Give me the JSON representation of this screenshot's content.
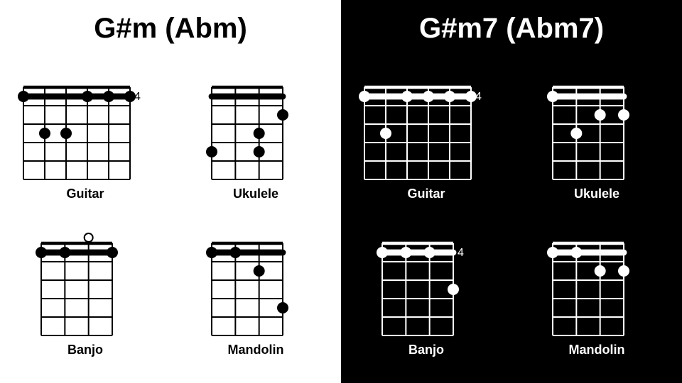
{
  "panels": [
    {
      "side": "left",
      "title": "G#m (Abm)",
      "bg": "#ffffff",
      "fg": "#000000",
      "diagrams": [
        {
          "label": "Guitar",
          "strings": 6,
          "frets": 5,
          "width": 150,
          "height": 130,
          "line_width": 2,
          "dot_radius": 8,
          "fret_label": "4",
          "fret_label_side": "right",
          "barre": {
            "fromString": 1,
            "toString": 6,
            "fret": 1
          },
          "open": [],
          "muted": [],
          "dots": [
            {
              "string": 1,
              "fret": 1
            },
            {
              "string": 4,
              "fret": 1
            },
            {
              "string": 5,
              "fret": 1
            },
            {
              "string": 6,
              "fret": 1
            },
            {
              "string": 2,
              "fret": 3
            },
            {
              "string": 3,
              "fret": 3
            }
          ]
        },
        {
          "label": "Ukulele",
          "strings": 4,
          "frets": 5,
          "width": 100,
          "height": 130,
          "line_width": 2,
          "dot_radius": 8,
          "fret_label": null,
          "barre": {
            "fromString": 1,
            "toString": 4,
            "fret": 1
          },
          "open": [],
          "muted": [],
          "dots": [
            {
              "string": 4,
              "fret": 2
            },
            {
              "string": 3,
              "fret": 3
            },
            {
              "string": 1,
              "fret": 4
            },
            {
              "string": 3,
              "fret": 4
            }
          ]
        },
        {
          "label": "Banjo",
          "strings": 4,
          "frets": 5,
          "width": 100,
          "height": 130,
          "line_width": 2,
          "dot_radius": 8,
          "fret_label": null,
          "barre": {
            "fromString": 1,
            "toString": 4,
            "fret": 1
          },
          "open": [
            3
          ],
          "muted": [],
          "dots": [
            {
              "string": 1,
              "fret": 1
            },
            {
              "string": 2,
              "fret": 1
            },
            {
              "string": 4,
              "fret": 1
            }
          ]
        },
        {
          "label": "Mandolin",
          "strings": 4,
          "frets": 5,
          "width": 100,
          "height": 130,
          "line_width": 2,
          "dot_radius": 8,
          "fret_label": null,
          "barre": {
            "fromString": 1,
            "toString": 4,
            "fret": 1
          },
          "open": [],
          "muted": [],
          "dots": [
            {
              "string": 1,
              "fret": 1
            },
            {
              "string": 2,
              "fret": 1
            },
            {
              "string": 3,
              "fret": 2
            },
            {
              "string": 4,
              "fret": 4
            }
          ]
        }
      ]
    },
    {
      "side": "right",
      "title": "G#m7 (Abm7)",
      "bg": "#000000",
      "fg": "#ffffff",
      "diagrams": [
        {
          "label": "Guitar",
          "strings": 6,
          "frets": 5,
          "width": 150,
          "height": 130,
          "line_width": 2,
          "dot_radius": 8,
          "fret_label": "4",
          "fret_label_side": "right",
          "barre": {
            "fromString": 1,
            "toString": 6,
            "fret": 1
          },
          "open": [],
          "muted": [],
          "dots": [
            {
              "string": 1,
              "fret": 1
            },
            {
              "string": 3,
              "fret": 1
            },
            {
              "string": 4,
              "fret": 1
            },
            {
              "string": 5,
              "fret": 1
            },
            {
              "string": 6,
              "fret": 1
            },
            {
              "string": 2,
              "fret": 3
            }
          ]
        },
        {
          "label": "Ukulele",
          "strings": 4,
          "frets": 5,
          "width": 100,
          "height": 130,
          "line_width": 2,
          "dot_radius": 8,
          "fret_label": null,
          "barre": {
            "fromString": 1,
            "toString": 4,
            "fret": 1
          },
          "open": [],
          "muted": [],
          "dots": [
            {
              "string": 1,
              "fret": 1
            },
            {
              "string": 3,
              "fret": 2
            },
            {
              "string": 4,
              "fret": 2
            },
            {
              "string": 2,
              "fret": 3
            }
          ]
        },
        {
          "label": "Banjo",
          "strings": 4,
          "frets": 5,
          "width": 100,
          "height": 130,
          "line_width": 2,
          "dot_radius": 8,
          "fret_label": "4",
          "fret_label_side": "right",
          "barre": {
            "fromString": 1,
            "toString": 4,
            "fret": 1
          },
          "open": [],
          "muted": [],
          "dots": [
            {
              "string": 1,
              "fret": 1
            },
            {
              "string": 2,
              "fret": 1
            },
            {
              "string": 3,
              "fret": 1
            },
            {
              "string": 4,
              "fret": 3
            }
          ]
        },
        {
          "label": "Mandolin",
          "strings": 4,
          "frets": 5,
          "width": 100,
          "height": 130,
          "line_width": 2,
          "dot_radius": 8,
          "fret_label": null,
          "barre": {
            "fromString": 1,
            "toString": 4,
            "fret": 1
          },
          "open": [],
          "muted": [],
          "dots": [
            {
              "string": 1,
              "fret": 1
            },
            {
              "string": 2,
              "fret": 1
            },
            {
              "string": 3,
              "fret": 2
            },
            {
              "string": 4,
              "fret": 2
            }
          ]
        }
      ]
    }
  ]
}
